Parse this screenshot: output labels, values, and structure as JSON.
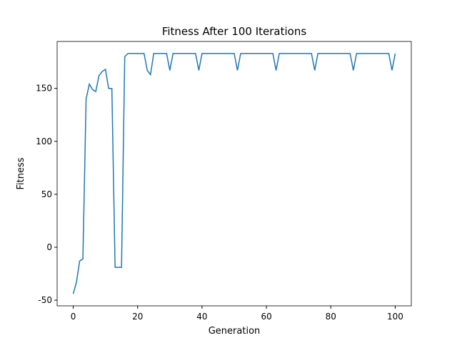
{
  "chart_data": {
    "type": "line",
    "title": "Fitness After 100 Iterations",
    "x_label": "Generation",
    "y_label": "Fitness",
    "x": [
      0,
      1,
      2,
      3,
      4,
      5,
      6,
      7,
      8,
      9,
      10,
      11,
      12,
      13,
      14,
      15,
      16,
      17,
      18,
      19,
      20,
      21,
      22,
      23,
      24,
      25,
      26,
      27,
      28,
      29,
      30,
      31,
      32,
      33,
      34,
      35,
      36,
      37,
      38,
      39,
      40,
      41,
      42,
      43,
      44,
      45,
      46,
      47,
      48,
      49,
      50,
      51,
      52,
      53,
      54,
      55,
      56,
      57,
      58,
      59,
      60,
      61,
      62,
      63,
      64,
      65,
      66,
      67,
      68,
      69,
      70,
      71,
      72,
      73,
      74,
      75,
      76,
      77,
      78,
      79,
      80,
      81,
      82,
      83,
      84,
      85,
      86,
      87,
      88,
      89,
      90,
      91,
      92,
      93,
      94,
      95,
      96,
      97,
      98,
      99,
      100
    ],
    "series": [
      {
        "name": "Fitness",
        "color": "#1f77b4",
        "values": [
          -44,
          -33,
          -13,
          -11,
          140,
          154,
          149,
          147,
          162,
          166,
          168,
          150,
          150,
          -19,
          -19,
          -19,
          180,
          183,
          183,
          183,
          183,
          183,
          183,
          167,
          163,
          183,
          183,
          183,
          183,
          183,
          167,
          183,
          183,
          183,
          183,
          183,
          183,
          183,
          183,
          167,
          183,
          183,
          183,
          183,
          183,
          183,
          183,
          183,
          183,
          183,
          183,
          167,
          183,
          183,
          183,
          183,
          183,
          183,
          183,
          183,
          183,
          183,
          183,
          167,
          183,
          183,
          183,
          183,
          183,
          183,
          183,
          183,
          183,
          183,
          183,
          167,
          183,
          183,
          183,
          183,
          183,
          183,
          183,
          183,
          183,
          183,
          183,
          167,
          183,
          183,
          183,
          183,
          183,
          183,
          183,
          183,
          183,
          183,
          183,
          167,
          183
        ]
      }
    ],
    "xlim": [
      -5,
      105
    ],
    "ylim": [
      -55.35,
      194.35
    ],
    "xticks": [
      0,
      20,
      40,
      60,
      80,
      100
    ],
    "yticks": [
      -50,
      0,
      50,
      100,
      150
    ]
  }
}
